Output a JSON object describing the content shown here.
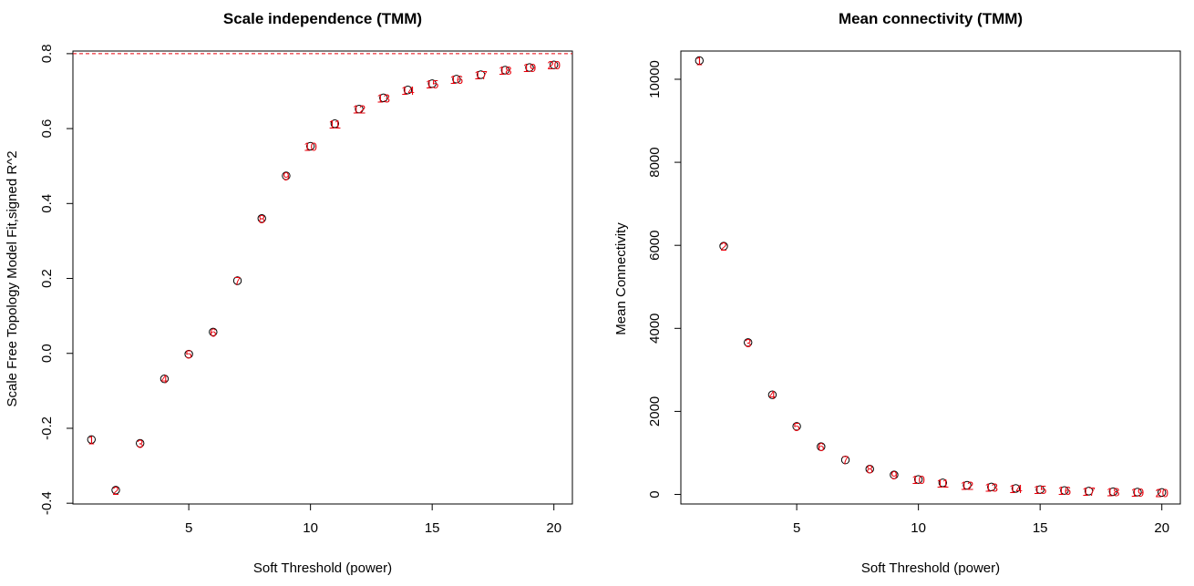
{
  "chart_data": [
    {
      "type": "scatter",
      "title": "Scale independence (TMM)",
      "xlabel": "Soft Threshold (power)",
      "ylabel": "Scale Free Topology Model Fit,signed R^2",
      "xlim": [
        0.24,
        20.76
      ],
      "ylim": [
        -0.402,
        0.807
      ],
      "xticks": [
        5,
        10,
        15,
        20
      ],
      "yticks": [
        -0.4,
        -0.2,
        0.0,
        0.2,
        0.4,
        0.6,
        0.8
      ],
      "ytick_labels": [
        "-0.4",
        "-0.2",
        "0.0",
        "0.2",
        "0.4",
        "0.6",
        "0.8"
      ],
      "x": [
        1,
        2,
        3,
        4,
        5,
        6,
        7,
        8,
        9,
        10,
        11,
        12,
        13,
        14,
        15,
        16,
        17,
        18,
        19,
        20
      ],
      "y": [
        -0.23,
        -0.365,
        -0.24,
        -0.068,
        -0.002,
        0.057,
        0.194,
        0.36,
        0.474,
        0.553,
        0.613,
        0.652,
        0.682,
        0.703,
        0.72,
        0.732,
        0.744,
        0.756,
        0.763,
        0.77
      ],
      "point_labels": [
        "1",
        "2",
        "3",
        "4",
        "5",
        "6",
        "7",
        "8",
        "9",
        "10",
        "11",
        "12",
        "13",
        "14",
        "15",
        "16",
        "17",
        "18",
        "19",
        "20"
      ],
      "hline": 0.8,
      "colors": {
        "labels": "#e8000b",
        "hline": "#e8000b",
        "points": "#000000"
      }
    },
    {
      "type": "scatter",
      "title": "Mean connectivity (TMM)",
      "xlabel": "Soft Threshold (power)",
      "ylabel": "Mean Connectivity",
      "xlim": [
        0.24,
        20.76
      ],
      "ylim": [
        -230,
        10680
      ],
      "xticks": [
        5,
        10,
        15,
        20
      ],
      "yticks": [
        0,
        2000,
        4000,
        6000,
        8000,
        10000
      ],
      "ytick_labels": [
        "0",
        "2000",
        "4000",
        "6000",
        "8000",
        "10000"
      ],
      "x": [
        1,
        2,
        3,
        4,
        5,
        6,
        7,
        8,
        9,
        10,
        11,
        12,
        13,
        14,
        15,
        16,
        17,
        18,
        19,
        20
      ],
      "y": [
        10450,
        5980,
        3660,
        2400,
        1640,
        1150,
        830,
        610,
        470,
        360,
        280,
        220,
        180,
        145,
        118,
        96,
        80,
        66,
        56,
        47
      ],
      "point_labels": [
        "1",
        "2",
        "3",
        "4",
        "5",
        "6",
        "7",
        "8",
        "9",
        "10",
        "11",
        "12",
        "13",
        "14",
        "15",
        "16",
        "17",
        "18",
        "19",
        "20"
      ],
      "colors": {
        "labels": "#e8000b",
        "points": "#000000"
      }
    }
  ]
}
